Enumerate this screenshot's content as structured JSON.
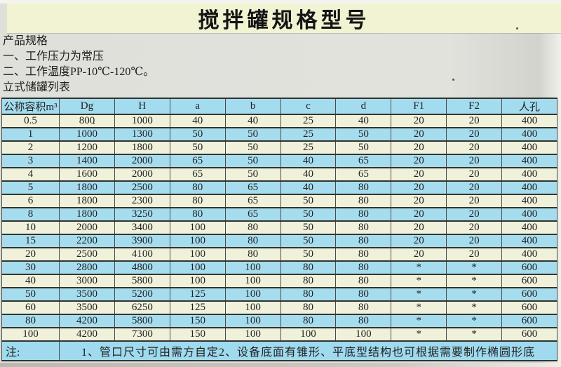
{
  "page": {
    "title": "搅拌罐规格型号",
    "specs": {
      "heading": "产品规格",
      "line1": "一、工作压力为常压",
      "line2": "二、工作温度PP-10℃-120℃。",
      "line3": "立式储罐列表"
    },
    "colors": {
      "title_band": "#f1f3d2",
      "paper_gray": "#dfe0da",
      "row_cream": "#f0f1da",
      "row_blue": "#a6ddee",
      "header_blue": "#a3dcef",
      "border": "#33332f",
      "text": "#1d1d1d"
    }
  },
  "table": {
    "columns": [
      "公称容积m³",
      "Dg",
      "H",
      "a",
      "b",
      "c",
      "d",
      "F1",
      "F2",
      "人孔"
    ],
    "rows": [
      {
        "shade": "cream",
        "cells": [
          "0.5",
          "800",
          "1000",
          "40",
          "40",
          "25",
          "40",
          "20",
          "20",
          "400"
        ]
      },
      {
        "shade": "blue",
        "cells": [
          "1",
          "1000",
          "1300",
          "50",
          "50",
          "25",
          "50",
          "20",
          "20",
          "400"
        ]
      },
      {
        "shade": "cream",
        "cells": [
          "2",
          "1200",
          "1800",
          "50",
          "50",
          "25",
          "50",
          "20",
          "20",
          "400"
        ]
      },
      {
        "shade": "blue",
        "cells": [
          "3",
          "1400",
          "2000",
          "65",
          "50",
          "40",
          "65",
          "20",
          "20",
          "400"
        ]
      },
      {
        "shade": "cream",
        "cells": [
          "4",
          "1600",
          "2000",
          "65",
          "50",
          "40",
          "65",
          "20",
          "20",
          "400"
        ]
      },
      {
        "shade": "blue",
        "cells": [
          "5",
          "1800",
          "2500",
          "80",
          "65",
          "40",
          "80",
          "20",
          "20",
          "400"
        ]
      },
      {
        "shade": "cream",
        "cells": [
          "6",
          "1800",
          "2300",
          "80",
          "65",
          "50",
          "80",
          "20",
          "20",
          "400"
        ]
      },
      {
        "shade": "blue",
        "cells": [
          "8",
          "1800",
          "3250",
          "80",
          "65",
          "50",
          "80",
          "20",
          "20",
          "400"
        ]
      },
      {
        "shade": "cream",
        "cells": [
          "10",
          "2000",
          "3400",
          "100",
          "80",
          "50",
          "80",
          "20",
          "20",
          "400"
        ]
      },
      {
        "shade": "blue",
        "cells": [
          "15",
          "2200",
          "3900",
          "100",
          "80",
          "50",
          "80",
          "20",
          "20",
          "400"
        ]
      },
      {
        "shade": "cream",
        "cells": [
          "20",
          "2500",
          "4100",
          "100",
          "80",
          "50",
          "80",
          "20",
          "20",
          "400"
        ]
      },
      {
        "shade": "blue",
        "cells": [
          "30",
          "2800",
          "4800",
          "100",
          "100",
          "80",
          "80",
          "*",
          "*",
          "600"
        ]
      },
      {
        "shade": "cream",
        "cells": [
          "40",
          "3000",
          "5800",
          "100",
          "100",
          "80",
          "80",
          "*",
          "*",
          "600"
        ]
      },
      {
        "shade": "blue",
        "cells": [
          "50",
          "3500",
          "5200",
          "125",
          "100",
          "80",
          "80",
          "*",
          "*",
          "600"
        ]
      },
      {
        "shade": "cream",
        "cells": [
          "60",
          "3500",
          "6250",
          "125",
          "100",
          "80",
          "80",
          "*",
          "*",
          "600"
        ]
      },
      {
        "shade": "blue",
        "cells": [
          "80",
          "4200",
          "5800",
          "150",
          "100",
          "80",
          "80",
          "*",
          "*",
          "600"
        ]
      },
      {
        "shade": "cream",
        "cells": [
          "100",
          "4200",
          "7300",
          "150",
          "100",
          "100",
          "100",
          "*",
          "*",
          "600"
        ]
      }
    ],
    "note": {
      "label": "注:",
      "text": "1、管口尺寸可由需方自定2、设备底面有锥形、平底型结构也可根据需要制作椭圆形底"
    }
  }
}
